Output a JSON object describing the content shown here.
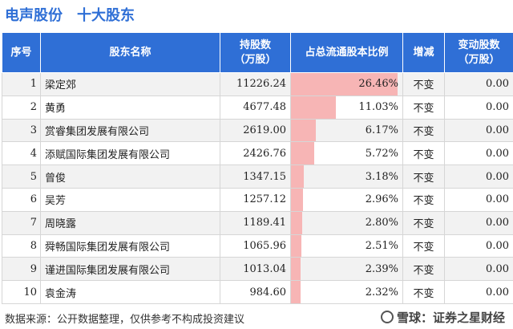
{
  "header": {
    "company": "电声股份",
    "subtitle": "十大股东"
  },
  "table": {
    "columns": [
      "序号",
      "股东名称",
      "持股数\n（万股）",
      "占总流通股本比例",
      "增减",
      "变动股数\n（万股）"
    ],
    "rows": [
      {
        "idx": "1",
        "name": "梁定郊",
        "shares": "11226.24",
        "ratio_text": "26.46%",
        "ratio": 26.46,
        "change": "不变",
        "delta": "0.00"
      },
      {
        "idx": "2",
        "name": "黄勇",
        "shares": "4677.48",
        "ratio_text": "11.03%",
        "ratio": 11.03,
        "change": "不变",
        "delta": "0.00"
      },
      {
        "idx": "3",
        "name": "赏睿集团发展有限公司",
        "shares": "2619.00",
        "ratio_text": "6.17%",
        "ratio": 6.17,
        "change": "不变",
        "delta": "0.00"
      },
      {
        "idx": "4",
        "name": "添赋国际集团发展有限公司",
        "shares": "2426.76",
        "ratio_text": "5.72%",
        "ratio": 5.72,
        "change": "不变",
        "delta": "0.00"
      },
      {
        "idx": "5",
        "name": "曾俊",
        "shares": "1347.15",
        "ratio_text": "3.18%",
        "ratio": 3.18,
        "change": "不变",
        "delta": "0.00"
      },
      {
        "idx": "6",
        "name": "吴芳",
        "shares": "1257.12",
        "ratio_text": "2.96%",
        "ratio": 2.96,
        "change": "不变",
        "delta": "0.00"
      },
      {
        "idx": "7",
        "name": "周晓露",
        "shares": "1189.41",
        "ratio_text": "2.80%",
        "ratio": 2.8,
        "change": "不变",
        "delta": "0.00"
      },
      {
        "idx": "8",
        "name": "舜畅国际集团发展有限公司",
        "shares": "1065.96",
        "ratio_text": "2.51%",
        "ratio": 2.51,
        "change": "不变",
        "delta": "0.00"
      },
      {
        "idx": "9",
        "name": "谨进国际集团发展有限公司",
        "shares": "1013.04",
        "ratio_text": "2.39%",
        "ratio": 2.39,
        "change": "不变",
        "delta": "0.00"
      },
      {
        "idx": "10",
        "name": "袁金涛",
        "shares": "984.60",
        "ratio_text": "2.32%",
        "ratio": 2.32,
        "change": "不变",
        "delta": "0.00"
      }
    ]
  },
  "footer": {
    "source": "数据来源：公开数据整理，仅供参考不构成投资建议",
    "brand": "雪球：证券之星财经"
  },
  "colors": {
    "header_bg": "#2f6fd6",
    "bar": "#f7b5b5",
    "title": "#2f6fd6"
  }
}
